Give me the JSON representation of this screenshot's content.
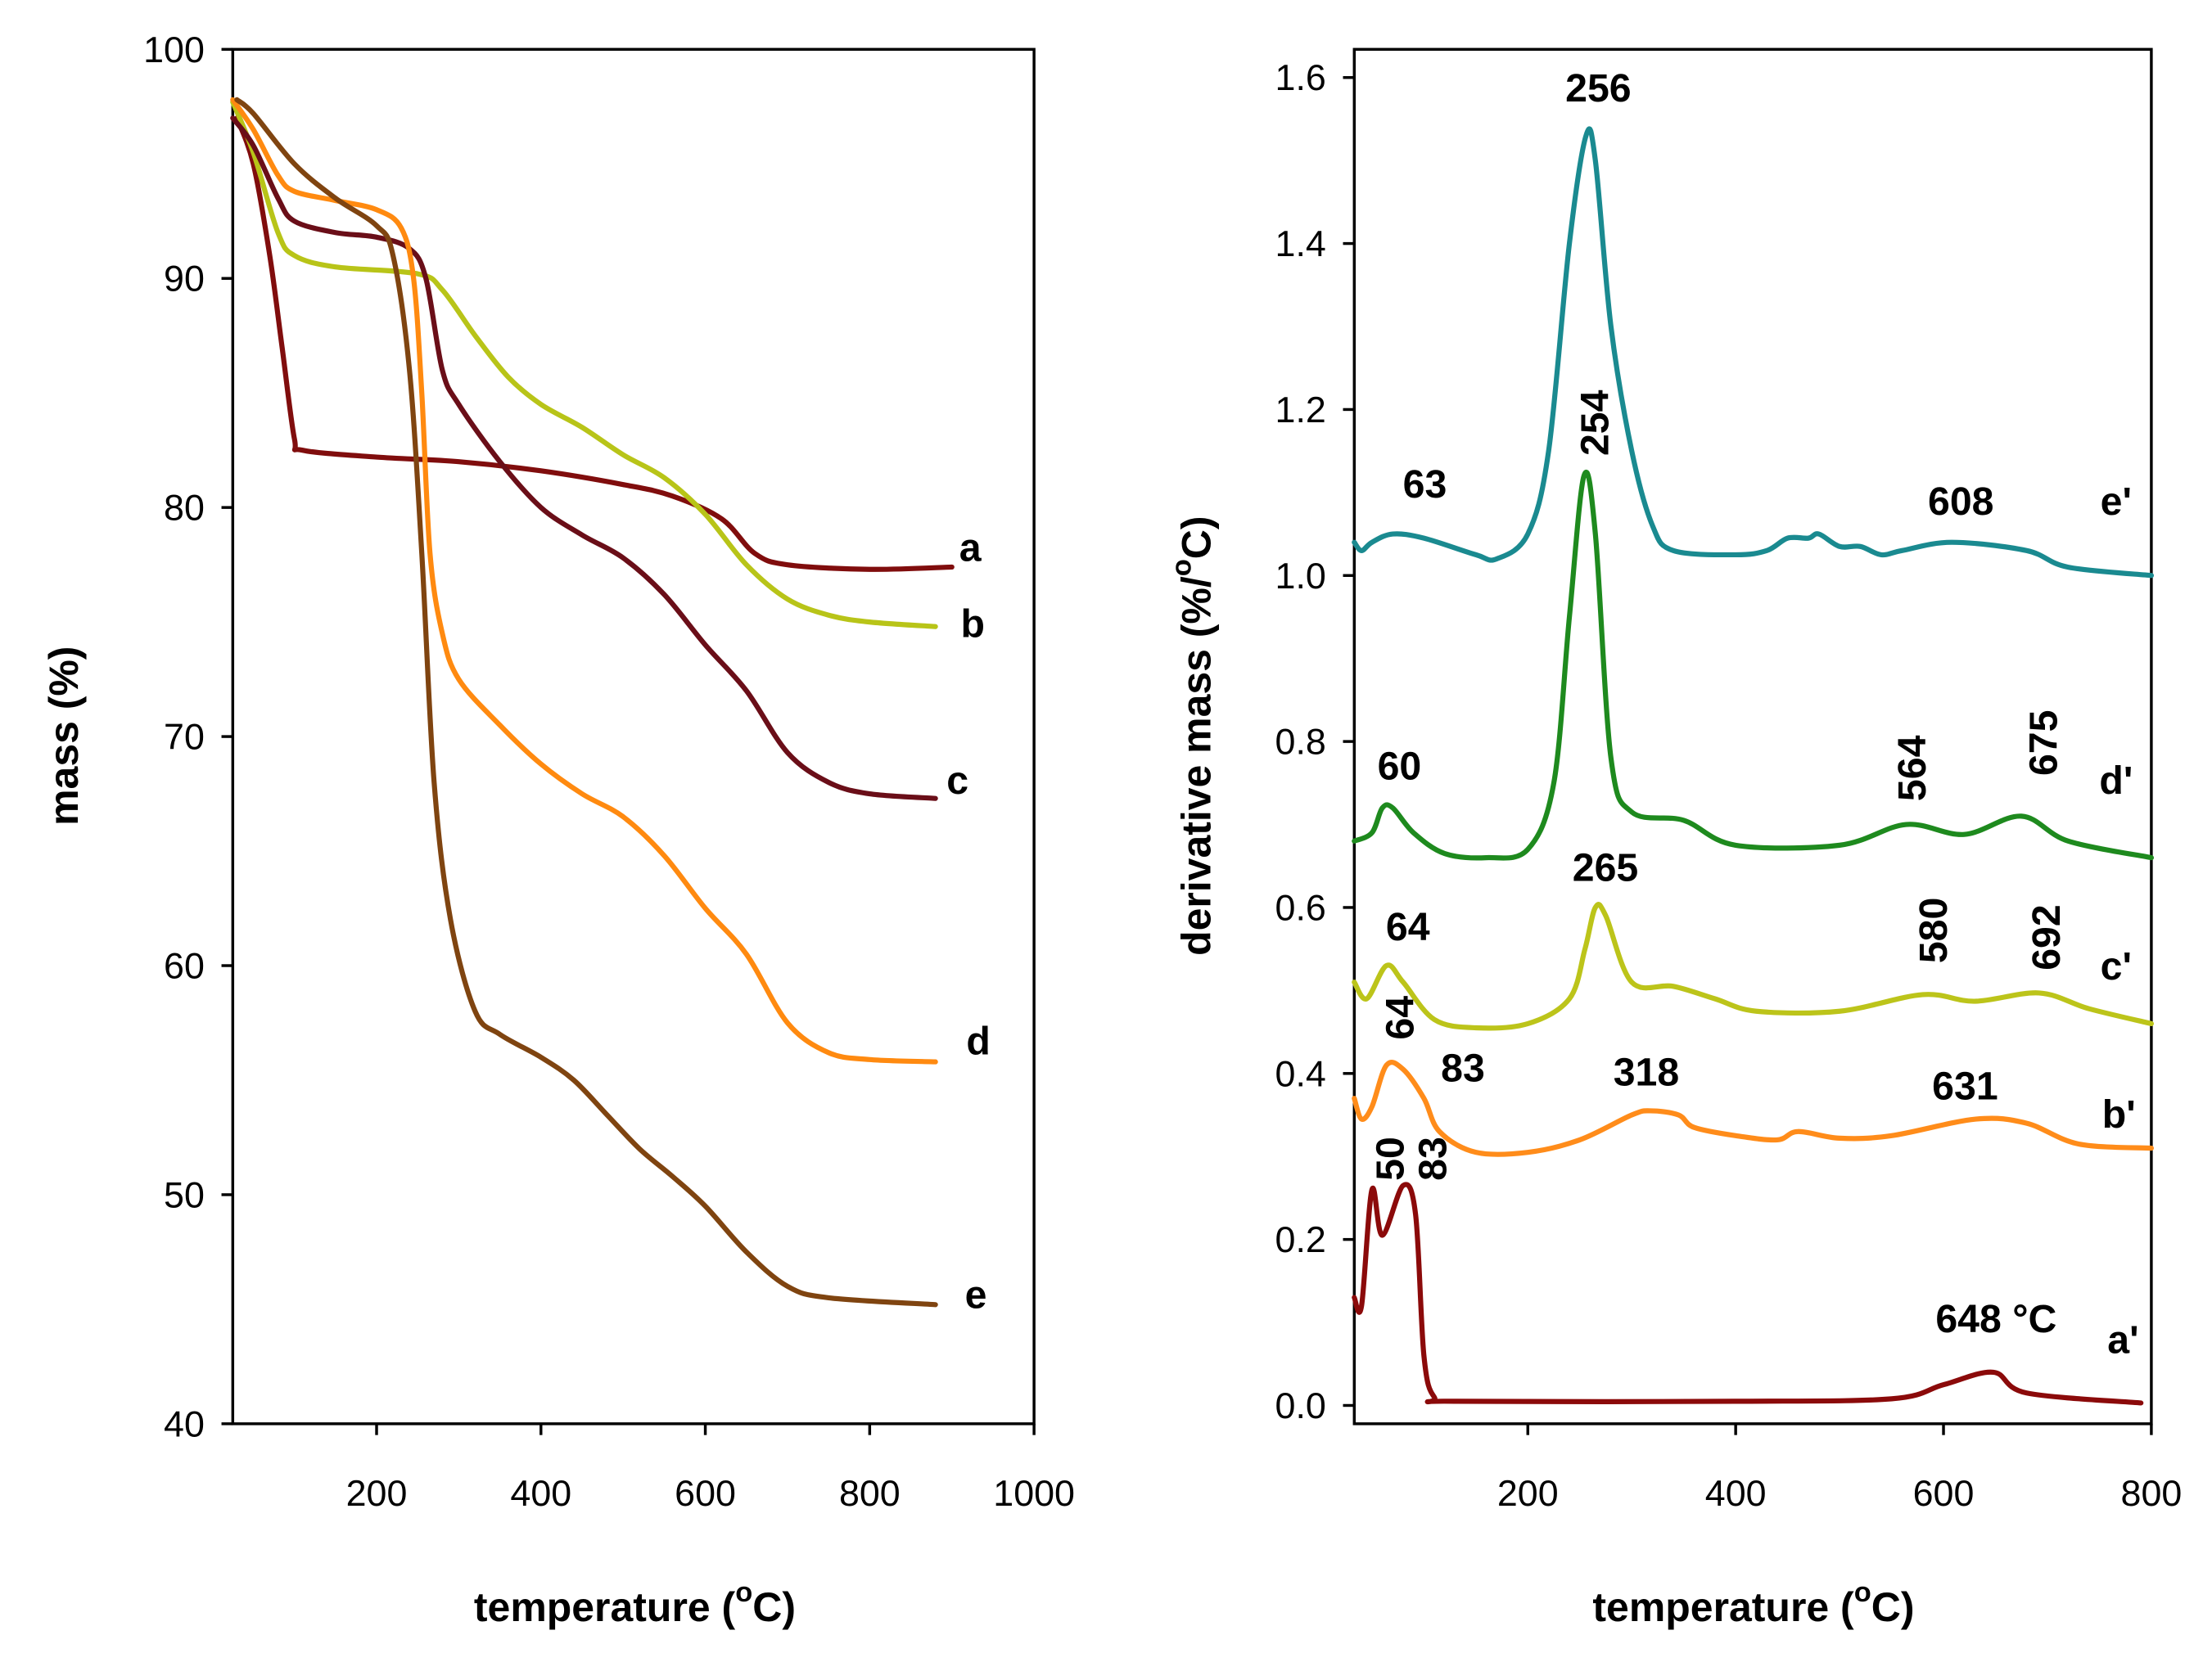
{
  "chart_data": [
    {
      "type": "line",
      "title": "",
      "xlabel": "temperature (",
      "xlabel_sup": "o",
      "xlabel_end": "C)",
      "ylabel": "mass  (%)",
      "xlim": [
        25,
        1000
      ],
      "ylim": [
        40,
        100
      ],
      "xticks": [
        200,
        400,
        600,
        800,
        1000
      ],
      "yticks": [
        40,
        50,
        60,
        70,
        80,
        90,
        100
      ],
      "grid": false,
      "series": [
        {
          "name": "a",
          "color": "#800d0d",
          "x": [
            30,
            50,
            70,
            85,
            100,
            110,
            200,
            300,
            400,
            500,
            560,
            620,
            660,
            700,
            800,
            900
          ],
          "y": [
            97,
            95,
            91,
            87,
            83,
            82.5,
            82.2,
            82,
            81.6,
            81,
            80.5,
            79.5,
            78,
            77.5,
            77.3,
            77.4
          ]
        },
        {
          "name": "b",
          "color": "#b8c418",
          "x": [
            25,
            50,
            80,
            100,
            150,
            250,
            280,
            320,
            360,
            400,
            450,
            500,
            550,
            600,
            650,
            700,
            750,
            800,
            880
          ],
          "y": [
            97.7,
            95.5,
            92,
            91,
            90.5,
            90.2,
            89.5,
            87.5,
            85.7,
            84.5,
            83.5,
            82.3,
            81.3,
            79.7,
            77.5,
            76,
            75.3,
            75,
            74.8
          ]
        },
        {
          "name": "c",
          "color": "#6a0e18",
          "x": [
            25,
            50,
            80,
            100,
            150,
            200,
            240,
            260,
            280,
            300,
            350,
            400,
            450,
            500,
            550,
            600,
            650,
            700,
            750,
            800,
            880
          ],
          "y": [
            97,
            95.8,
            93.5,
            92.5,
            92,
            91.8,
            91.3,
            90,
            86,
            84.5,
            82,
            80,
            78.8,
            77.8,
            76.2,
            74,
            72,
            69.3,
            68,
            67.5,
            67.3
          ]
        },
        {
          "name": "d",
          "color": "#ff8a10",
          "x": [
            25,
            50,
            80,
            100,
            150,
            200,
            230,
            245,
            255,
            265,
            280,
            300,
            350,
            400,
            450,
            500,
            550,
            600,
            650,
            700,
            750,
            800,
            880
          ],
          "y": [
            97.8,
            96.5,
            94.5,
            93.8,
            93.4,
            93,
            92.2,
            90,
            85,
            78,
            74.5,
            72.5,
            70.5,
            68.8,
            67.5,
            66.5,
            64.8,
            62.5,
            60.5,
            57.5,
            56.2,
            55.9,
            55.8
          ]
        },
        {
          "name": "e",
          "color": "#7f4410",
          "x": [
            30,
            50,
            100,
            150,
            200,
            220,
            240,
            255,
            270,
            290,
            320,
            350,
            400,
            440,
            480,
            520,
            560,
            600,
            650,
            700,
            750,
            880
          ],
          "y": [
            97.8,
            97.2,
            95,
            93.5,
            92.3,
            91,
            86,
            78,
            68,
            62,
            58,
            57,
            56,
            55,
            53.5,
            52,
            50.8,
            49.5,
            47.5,
            46,
            45.5,
            45.2
          ]
        }
      ],
      "annotations": [
        "a",
        "b",
        "c",
        "d",
        "e"
      ]
    },
    {
      "type": "line",
      "title": "",
      "xlabel": "temperature (",
      "xlabel_sup": "o",
      "xlabel_end": "C)",
      "ylabel": "derivative mass (%/",
      "ylabel_sup": "o",
      "ylabel_end": "C)",
      "xlim": [
        33,
        800
      ],
      "ylim": [
        0.0,
        1.6
      ],
      "xticks": [
        200,
        400,
        600,
        800
      ],
      "yticks": [
        "0.0",
        "0.2",
        "0.4",
        "0.6",
        "0.8",
        "1.0",
        "1.2",
        "1.4",
        "1.6"
      ],
      "grid": false,
      "series": [
        {
          "name": "e'",
          "color": "#1a8a90",
          "x": [
            33,
            40,
            50,
            70,
            100,
            150,
            170,
            200,
            220,
            240,
            256,
            265,
            280,
            300,
            320,
            340,
            400,
            430,
            450,
            470,
            480,
            500,
            520,
            540,
            560,
            608,
            680,
            720,
            800
          ],
          "y": [
            1.04,
            1.03,
            1.04,
            1.05,
            1.045,
            1.025,
            1.02,
            1.05,
            1.15,
            1.4,
            1.53,
            1.5,
            1.3,
            1.15,
            1.06,
            1.03,
            1.025,
            1.03,
            1.045,
            1.045,
            1.05,
            1.035,
            1.035,
            1.025,
            1.03,
            1.04,
            1.03,
            1.01,
            1.0
          ]
        },
        {
          "name": "d'",
          "color": "#1e8a1e",
          "x": [
            33,
            50,
            60,
            70,
            90,
            120,
            160,
            200,
            225,
            240,
            254,
            265,
            280,
            300,
            350,
            400,
            500,
            564,
            620,
            675,
            720,
            800
          ],
          "y": [
            0.68,
            0.69,
            0.72,
            0.72,
            0.69,
            0.665,
            0.66,
            0.67,
            0.75,
            0.95,
            1.12,
            1.05,
            0.78,
            0.715,
            0.705,
            0.675,
            0.675,
            0.7,
            0.688,
            0.71,
            0.68,
            0.66
          ]
        },
        {
          "name": "c'",
          "color": "#bcc41a",
          "x": [
            33,
            45,
            64,
            80,
            110,
            150,
            200,
            240,
            255,
            265,
            275,
            300,
            340,
            380,
            420,
            500,
            580,
            630,
            692,
            740,
            800
          ],
          "y": [
            0.51,
            0.49,
            0.53,
            0.51,
            0.465,
            0.455,
            0.46,
            0.49,
            0.55,
            0.6,
            0.59,
            0.51,
            0.505,
            0.49,
            0.475,
            0.475,
            0.495,
            0.487,
            0.497,
            0.478,
            0.46
          ]
        },
        {
          "name": "b'",
          "color": "#ff8c1a",
          "x": [
            33,
            40,
            50,
            64,
            80,
            100,
            115,
            150,
            200,
            250,
            300,
            318,
            345,
            360,
            400,
            440,
            460,
            500,
            550,
            631,
            680,
            730,
            800
          ],
          "y": [
            0.37,
            0.345,
            0.36,
            0.41,
            0.405,
            0.37,
            0.33,
            0.305,
            0.305,
            0.32,
            0.35,
            0.355,
            0.35,
            0.335,
            0.325,
            0.32,
            0.33,
            0.322,
            0.325,
            0.345,
            0.34,
            0.315,
            0.31
          ]
        },
        {
          "name": "a'",
          "color": "#8b0a0a",
          "x": [
            33,
            40,
            50,
            60,
            80,
            92,
            100,
            110,
            130,
            400,
            550,
            600,
            648,
            680,
            790
          ],
          "y": [
            0.13,
            0.12,
            0.26,
            0.205,
            0.265,
            0.23,
            0.06,
            0.01,
            0.005,
            0.005,
            0.008,
            0.025,
            0.04,
            0.015,
            0.003
          ]
        }
      ],
      "annotations": [
        "256",
        "254",
        "63",
        "608",
        "e'",
        "60",
        "564",
        "675",
        "d'",
        "265",
        "64",
        "580",
        "692",
        "c'",
        "64",
        "83",
        "318",
        "631",
        "b'",
        "50",
        "83",
        "648 °C",
        "a'"
      ]
    }
  ]
}
